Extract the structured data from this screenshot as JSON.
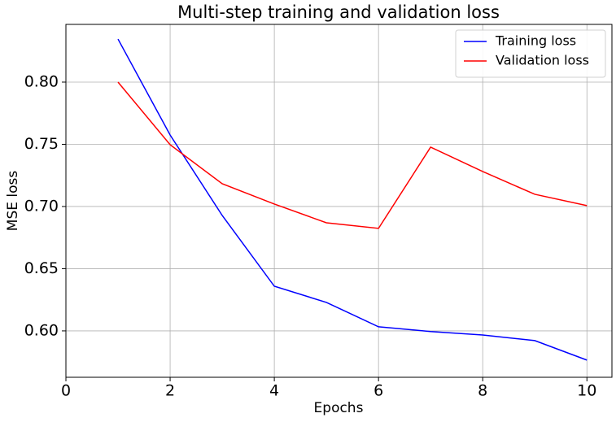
{
  "chart_data": {
    "type": "line",
    "title": "Multi-step training and validation loss",
    "x_label": "Epochs",
    "y_label": "MSE loss",
    "x": [
      1,
      2,
      3,
      4,
      5,
      6,
      7,
      8,
      9,
      10
    ],
    "series": [
      {
        "name": "Training loss",
        "color": "#0000ff",
        "values": [
          0.8346,
          0.7575,
          0.6928,
          0.6359,
          0.6229,
          0.6033,
          0.5995,
          0.5967,
          0.5922,
          0.5765
        ]
      },
      {
        "name": "Validation loss",
        "color": "#ff0000",
        "values": [
          0.8,
          0.7497,
          0.7183,
          0.702,
          0.6869,
          0.6824,
          0.7477,
          0.7281,
          0.7098,
          0.7007
        ]
      }
    ],
    "xlim": [
      0,
      10.48
    ],
    "ylim": [
      0.5627,
      0.8464
    ],
    "xticks": [
      0,
      2,
      4,
      6,
      8,
      10
    ],
    "yticks": [
      {
        "value": 0.6,
        "label": "0.60"
      },
      {
        "value": 0.65,
        "label": "0.65"
      },
      {
        "value": 0.7,
        "label": "0.70"
      },
      {
        "value": 0.75,
        "label": "0.75"
      },
      {
        "value": 0.8,
        "label": "0.80"
      }
    ],
    "grid": true,
    "legend": "upper right"
  }
}
